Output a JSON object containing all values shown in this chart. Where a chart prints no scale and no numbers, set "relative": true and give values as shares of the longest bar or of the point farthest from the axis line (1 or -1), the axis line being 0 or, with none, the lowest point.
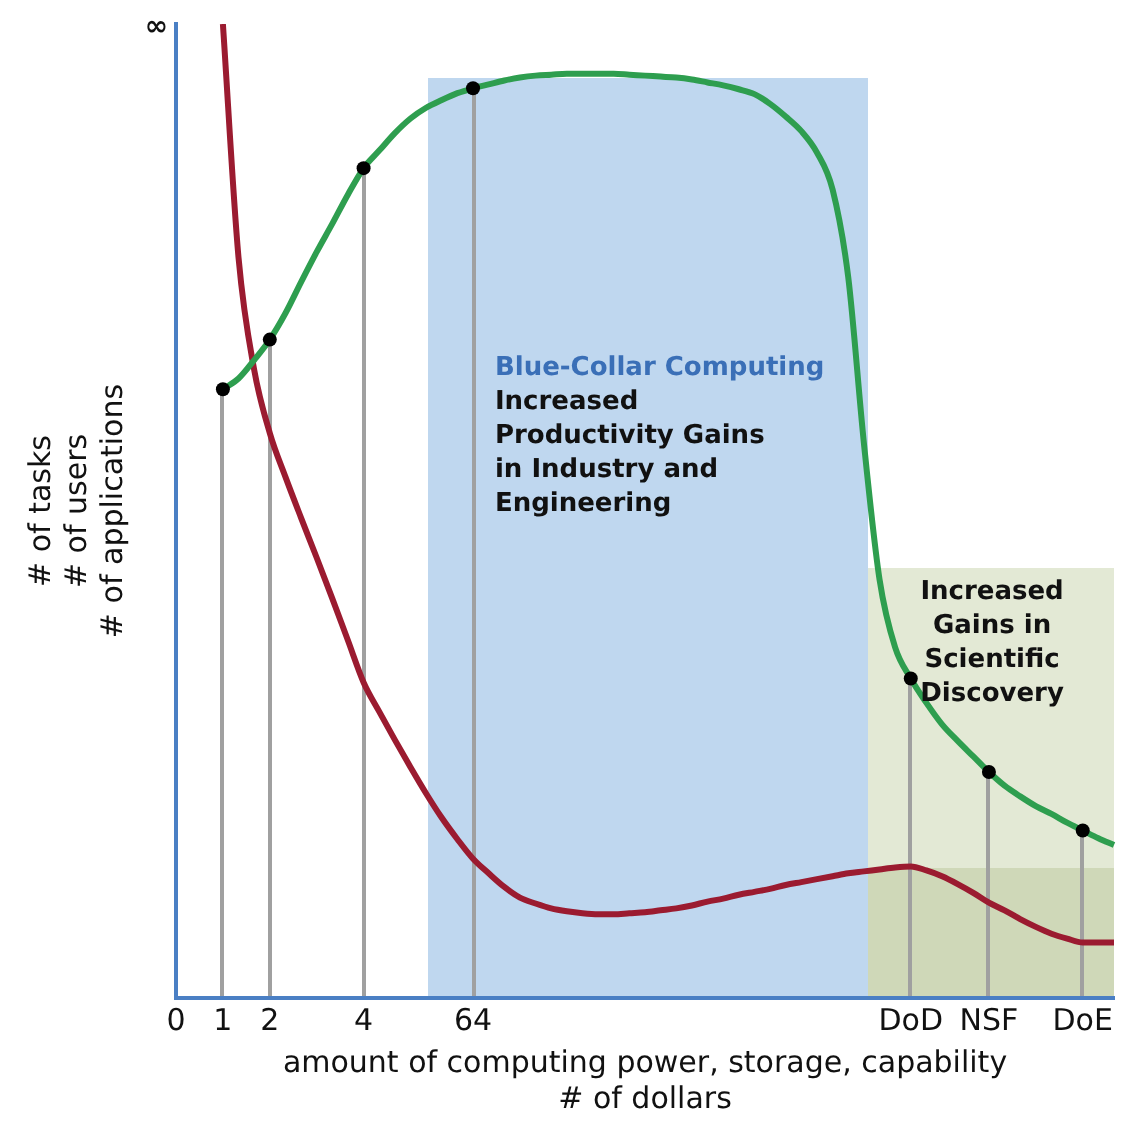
{
  "chart_data": {
    "type": "line",
    "relative": true,
    "xlabel": "amount of computing power, storage, capability\n# of dollars",
    "ylabel": "# of tasks\n# of users\n# of applications",
    "categories": [
      "0",
      null,
      null,
      "1",
      null,
      null,
      "2",
      null,
      null,
      null,
      null,
      null,
      "4",
      null,
      null,
      null,
      null,
      null,
      null,
      "64",
      null,
      null,
      null,
      null,
      null,
      null,
      null,
      null,
      null,
      null,
      null,
      null,
      null,
      null,
      null,
      null,
      null,
      null,
      null,
      null,
      null,
      null,
      null,
      null,
      null,
      null,
      null,
      "DoD",
      null,
      null,
      null,
      null,
      "NSF",
      null,
      null,
      null,
      null,
      null,
      "DoE",
      null,
      null
    ],
    "grid": false,
    "legend": false,
    "line_style": "solid",
    "series": [
      {
        "type": "scatter",
        "color": "#000000",
        "marker": "circle",
        "x": [
          "1",
          "2",
          "4",
          "64",
          "DoD",
          "NSF",
          "DoE"
        ],
        "values": [
          0.625,
          0.676,
          0.852,
          0.934,
          0.328,
          0.232,
          0.172
        ]
      },
      {
        "color": "#2e9e4f",
        "marker": "none",
        "values": [
          null,
          null,
          null,
          0.625,
          0.636,
          0.655,
          0.676,
          0.703,
          0.735,
          0.766,
          0.795,
          0.825,
          0.852,
          0.87,
          0.888,
          0.903,
          0.914,
          0.922,
          0.929,
          0.934,
          0.938,
          0.942,
          0.945,
          0.947,
          0.948,
          0.949,
          0.949,
          0.949,
          0.949,
          0.948,
          0.947,
          0.946,
          0.945,
          0.943,
          0.94,
          0.937,
          0.933,
          0.928,
          0.918,
          0.905,
          0.89,
          0.868,
          0.83,
          0.74,
          0.57,
          0.43,
          0.36,
          0.328,
          0.303,
          0.281,
          0.264,
          0.248,
          0.232,
          0.218,
          0.207,
          0.197,
          0.189,
          0.18,
          0.172,
          0.164,
          0.157
        ]
      },
      {
        "color": "#9b1b30",
        "marker": "none",
        "values": [
          null,
          null,
          null,
          1,
          0.76,
          0.645,
          0.58,
          0.535,
          0.493,
          0.452,
          0.41,
          0.367,
          0.324,
          0.294,
          0.265,
          0.237,
          0.21,
          0.185,
          0.163,
          0.143,
          0.128,
          0.114,
          0.103,
          0.097,
          0.092,
          0.089,
          0.087,
          0.086,
          0.086,
          0.087,
          0.088,
          0.09,
          0.092,
          0.095,
          0.099,
          0.102,
          0.106,
          0.109,
          0.112,
          0.116,
          0.119,
          0.122,
          0.125,
          0.128,
          0.13,
          0.132,
          0.134,
          0.135,
          0.131,
          0.125,
          0.117,
          0.108,
          0.098,
          0.09,
          0.081,
          0.073,
          0.066,
          0.061,
          0.057,
          0.057,
          0.057
        ]
      }
    ],
    "annotations": [
      "∞",
      "Blue-Collar Computing",
      "Increased Productivity Gains in Industry and Engineering",
      "Increased Gains in Scientific Discovery"
    ]
  }
}
